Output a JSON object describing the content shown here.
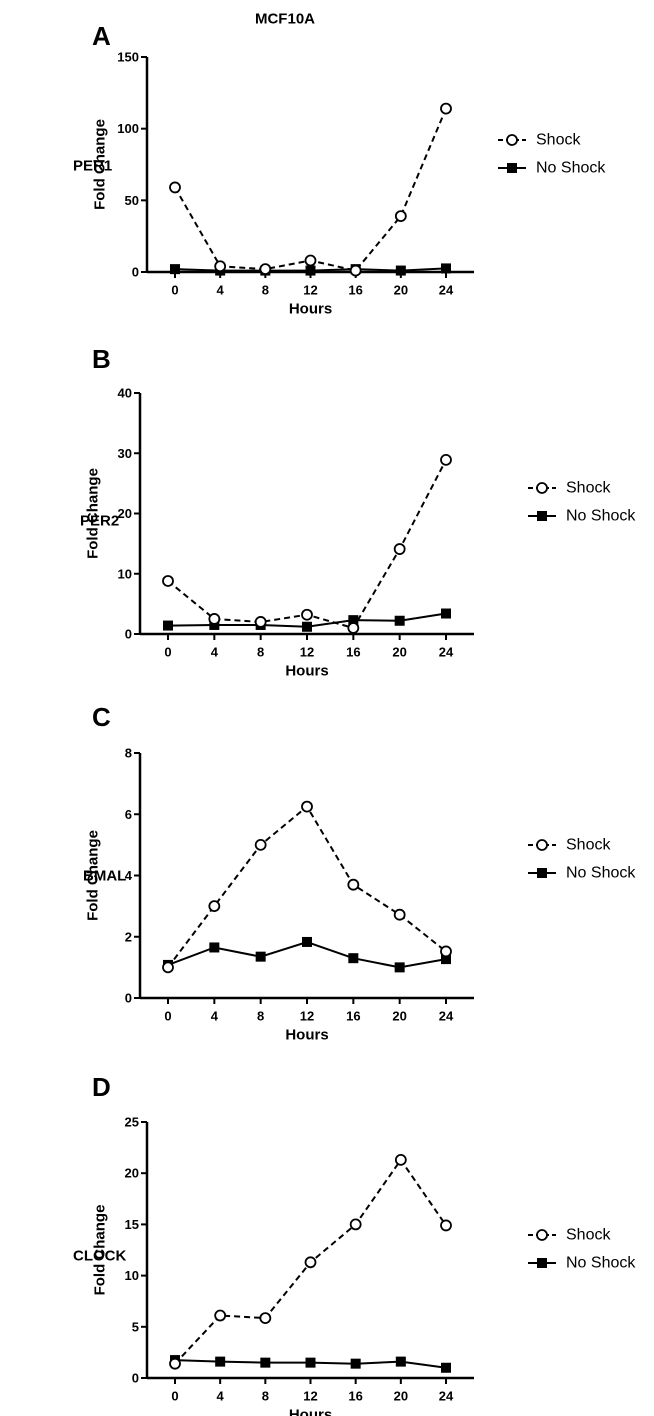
{
  "figure_title": "MCF10A",
  "chart_data": [
    {
      "type": "line",
      "panel": "A",
      "gene": "PER1",
      "title": "MCF10A",
      "xlabel": "Hours",
      "ylabel": "Fold Change",
      "x": [
        0,
        4,
        8,
        12,
        16,
        20,
        24
      ],
      "ylim": [
        0,
        150
      ],
      "yticks": [
        0,
        50,
        100,
        150
      ],
      "grid": false,
      "legend": "right",
      "series": [
        {
          "name": "Shock",
          "values": [
            59,
            4,
            2,
            8,
            1,
            39,
            114
          ]
        },
        {
          "name": "No Shock",
          "values": [
            2,
            1,
            1,
            1,
            2,
            1,
            2.5
          ]
        }
      ]
    },
    {
      "type": "line",
      "panel": "B",
      "gene": "PER2",
      "title": "",
      "xlabel": "Hours",
      "ylabel": "Fold Change",
      "x": [
        0,
        4,
        8,
        12,
        16,
        20,
        24
      ],
      "ylim": [
        0,
        40
      ],
      "yticks": [
        0,
        10,
        20,
        30,
        40
      ],
      "grid": false,
      "legend": "right",
      "series": [
        {
          "name": "Shock",
          "values": [
            8.8,
            2.5,
            2.0,
            3.2,
            1.0,
            14.1,
            28.9
          ]
        },
        {
          "name": "No Shock",
          "values": [
            1.4,
            1.5,
            1.5,
            1.2,
            2.3,
            2.2,
            3.4
          ]
        }
      ]
    },
    {
      "type": "line",
      "panel": "C",
      "gene": "BMAL",
      "title": "",
      "xlabel": "Hours",
      "ylabel": "Fold Change",
      "x": [
        0,
        4,
        8,
        12,
        16,
        20,
        24
      ],
      "ylim": [
        0,
        8
      ],
      "yticks": [
        0,
        2,
        4,
        6,
        8
      ],
      "grid": false,
      "legend": "right",
      "series": [
        {
          "name": "Shock",
          "values": [
            1.0,
            3.0,
            5.0,
            6.25,
            3.7,
            2.72,
            1.52
          ]
        },
        {
          "name": "No Shock",
          "values": [
            1.08,
            1.65,
            1.35,
            1.83,
            1.3,
            1.0,
            1.27
          ]
        }
      ]
    },
    {
      "type": "line",
      "panel": "D",
      "gene": "CLOCK",
      "title": "",
      "xlabel": "Hours",
      "ylabel": "Fold Change",
      "x": [
        0,
        4,
        8,
        12,
        16,
        20,
        24
      ],
      "ylim": [
        0,
        25
      ],
      "yticks": [
        0,
        5,
        10,
        15,
        20,
        25
      ],
      "grid": false,
      "legend": "right",
      "series": [
        {
          "name": "Shock",
          "values": [
            1.4,
            6.1,
            5.85,
            11.3,
            15.0,
            21.3,
            14.9
          ]
        },
        {
          "name": "No Shock",
          "values": [
            1.75,
            1.6,
            1.5,
            1.5,
            1.4,
            1.6,
            1.0
          ]
        }
      ]
    }
  ]
}
